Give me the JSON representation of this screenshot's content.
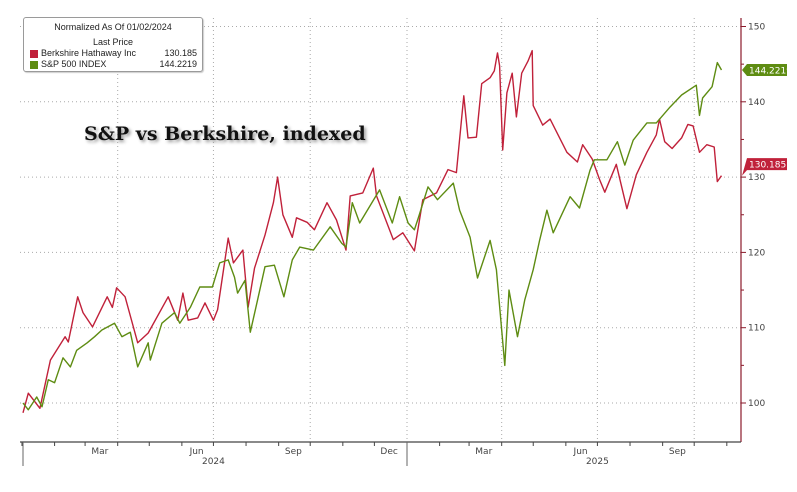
{
  "legend": {
    "header_line1": "Normalized As Of 01/02/2024",
    "header_line2": "Last Price",
    "items": [
      {
        "name": "Berkshire Hathaway Inc",
        "value": "130.185",
        "color": "#c0213a"
      },
      {
        "name": "S&P 500 INDEX",
        "value": "144.2219",
        "color": "#5e8c12"
      }
    ]
  },
  "annotation": "S&P vs Berkshire, indexed",
  "chart_data": {
    "type": "line",
    "title": "",
    "xlabel": "",
    "ylabel": "",
    "ylim": [
      95,
      151
    ],
    "y_ticks": [
      100,
      110,
      120,
      130,
      140,
      150
    ],
    "y_axis_side": "right",
    "x_range": [
      "2024-01-02",
      "2025-11-10"
    ],
    "x_tick_labels": [
      {
        "label": "Mar",
        "date": "2024-03-15"
      },
      {
        "label": "Jun",
        "date": "2024-06-15"
      },
      {
        "label": "Sep",
        "date": "2024-09-15"
      },
      {
        "label": "Dec",
        "date": "2024-12-15"
      },
      {
        "label": "Mar",
        "date": "2025-03-15"
      },
      {
        "label": "Jun",
        "date": "2025-06-15"
      },
      {
        "label": "Sep",
        "date": "2025-09-15"
      }
    ],
    "year_labels": [
      {
        "label": "2024",
        "date": "2024-07-01"
      },
      {
        "label": "2025",
        "date": "2025-07-01"
      }
    ],
    "grid": true,
    "legend_position": "top-left",
    "series": [
      {
        "name": "Berkshire Hathaway Inc",
        "color": "#c0213a",
        "last_value": "130.185",
        "points": [
          [
            "2024-01-02",
            98.7
          ],
          [
            "2024-01-07",
            101.3
          ],
          [
            "2024-01-18",
            99.3
          ],
          [
            "2024-01-28",
            105.7
          ],
          [
            "2024-02-11",
            108.8
          ],
          [
            "2024-02-14",
            108.1
          ],
          [
            "2024-02-23",
            114.1
          ],
          [
            "2024-02-28",
            112.0
          ],
          [
            "2024-03-08",
            110.1
          ],
          [
            "2024-03-22",
            114.1
          ],
          [
            "2024-03-27",
            112.7
          ],
          [
            "2024-03-31",
            115.3
          ],
          [
            "2024-04-08",
            114.1
          ],
          [
            "2024-04-20",
            108.0
          ],
          [
            "2024-04-30",
            109.3
          ],
          [
            "2024-05-19",
            114.1
          ],
          [
            "2024-05-28",
            111.0
          ],
          [
            "2024-06-02",
            114.6
          ],
          [
            "2024-06-07",
            111.0
          ],
          [
            "2024-06-16",
            111.3
          ],
          [
            "2024-06-23",
            113.3
          ],
          [
            "2024-07-01",
            111.0
          ],
          [
            "2024-07-05",
            112.4
          ],
          [
            "2024-07-15",
            121.9
          ],
          [
            "2024-07-20",
            118.6
          ],
          [
            "2024-07-29",
            120.3
          ],
          [
            "2024-08-03",
            112.7
          ],
          [
            "2024-08-09",
            117.9
          ],
          [
            "2024-08-19",
            122.3
          ],
          [
            "2024-08-27",
            126.6
          ],
          [
            "2024-08-31",
            130.0
          ],
          [
            "2024-09-05",
            125.0
          ],
          [
            "2024-09-14",
            122.0
          ],
          [
            "2024-09-18",
            124.6
          ],
          [
            "2024-09-28",
            124.0
          ],
          [
            "2024-10-05",
            123.0
          ],
          [
            "2024-10-17",
            126.6
          ],
          [
            "2024-10-26",
            124.3
          ],
          [
            "2024-11-04",
            120.3
          ],
          [
            "2024-11-08",
            127.5
          ],
          [
            "2024-11-20",
            127.9
          ],
          [
            "2024-11-30",
            131.2
          ],
          [
            "2024-12-03",
            127.5
          ],
          [
            "2024-12-19",
            121.7
          ],
          [
            "2024-12-28",
            122.6
          ],
          [
            "2025-01-08",
            120.2
          ],
          [
            "2025-01-16",
            127.0
          ],
          [
            "2025-01-29",
            127.9
          ],
          [
            "2025-02-09",
            131.0
          ],
          [
            "2025-02-17",
            130.6
          ],
          [
            "2025-02-24",
            140.8
          ],
          [
            "2025-02-28",
            135.2
          ],
          [
            "2025-03-08",
            135.3
          ],
          [
            "2025-03-13",
            142.4
          ],
          [
            "2025-03-21",
            143.2
          ],
          [
            "2025-03-25",
            144.1
          ],
          [
            "2025-03-28",
            146.5
          ],
          [
            "2025-03-30",
            144.8
          ],
          [
            "2025-04-02",
            133.6
          ],
          [
            "2025-04-06",
            141.2
          ],
          [
            "2025-04-11",
            143.8
          ],
          [
            "2025-04-15",
            138.0
          ],
          [
            "2025-04-20",
            143.8
          ],
          [
            "2025-04-26",
            145.4
          ],
          [
            "2025-04-30",
            146.8
          ],
          [
            "2025-05-01",
            139.5
          ],
          [
            "2025-05-10",
            136.9
          ],
          [
            "2025-05-17",
            137.7
          ],
          [
            "2025-06-02",
            133.3
          ],
          [
            "2025-06-12",
            132.0
          ],
          [
            "2025-06-17",
            134.3
          ],
          [
            "2025-06-26",
            132.4
          ],
          [
            "2025-07-03",
            129.7
          ],
          [
            "2025-07-08",
            128.0
          ],
          [
            "2025-07-19",
            131.7
          ],
          [
            "2025-07-29",
            125.8
          ],
          [
            "2025-08-07",
            130.3
          ],
          [
            "2025-08-17",
            133.3
          ],
          [
            "2025-08-26",
            135.6
          ],
          [
            "2025-08-29",
            137.7
          ],
          [
            "2025-09-03",
            134.7
          ],
          [
            "2025-09-10",
            133.8
          ],
          [
            "2025-09-19",
            135.2
          ],
          [
            "2025-09-25",
            137.0
          ],
          [
            "2025-09-30",
            136.8
          ],
          [
            "2025-10-06",
            133.3
          ],
          [
            "2025-10-13",
            134.3
          ],
          [
            "2025-10-20",
            134.0
          ],
          [
            "2025-10-23",
            129.4
          ],
          [
            "2025-10-27",
            130.185
          ]
        ]
      },
      {
        "name": "S&P 500 INDEX",
        "color": "#5e8c12",
        "last_value": "144.2219",
        "points": [
          [
            "2024-01-02",
            100.0
          ],
          [
            "2024-01-07",
            99.1
          ],
          [
            "2024-01-15",
            100.8
          ],
          [
            "2024-01-20",
            99.5
          ],
          [
            "2024-01-26",
            103.1
          ],
          [
            "2024-02-01",
            102.7
          ],
          [
            "2024-02-09",
            106.0
          ],
          [
            "2024-02-16",
            104.8
          ],
          [
            "2024-02-22",
            107.0
          ],
          [
            "2024-03-03",
            108.0
          ],
          [
            "2024-03-10",
            108.8
          ],
          [
            "2024-03-17",
            109.7
          ],
          [
            "2024-03-29",
            110.6
          ],
          [
            "2024-04-05",
            108.8
          ],
          [
            "2024-04-13",
            109.4
          ],
          [
            "2024-04-20",
            104.8
          ],
          [
            "2024-04-30",
            108.0
          ],
          [
            "2024-05-02",
            105.7
          ],
          [
            "2024-05-13",
            110.6
          ],
          [
            "2024-05-25",
            112.0
          ],
          [
            "2024-05-30",
            110.6
          ],
          [
            "2024-06-09",
            112.7
          ],
          [
            "2024-06-18",
            115.4
          ],
          [
            "2024-06-30",
            115.4
          ],
          [
            "2024-07-07",
            118.6
          ],
          [
            "2024-07-15",
            119.0
          ],
          [
            "2024-07-21",
            116.7
          ],
          [
            "2024-07-24",
            114.6
          ],
          [
            "2024-07-31",
            116.3
          ],
          [
            "2024-08-05",
            109.4
          ],
          [
            "2024-08-12",
            113.7
          ],
          [
            "2024-08-19",
            118.1
          ],
          [
            "2024-08-28",
            118.3
          ],
          [
            "2024-09-06",
            114.1
          ],
          [
            "2024-09-14",
            119.0
          ],
          [
            "2024-09-21",
            120.7
          ],
          [
            "2024-10-04",
            120.3
          ],
          [
            "2024-10-20",
            123.4
          ],
          [
            "2024-10-31",
            121.2
          ],
          [
            "2024-11-04",
            120.7
          ],
          [
            "2024-11-10",
            126.6
          ],
          [
            "2024-11-17",
            123.9
          ],
          [
            "2024-12-06",
            128.3
          ],
          [
            "2024-12-18",
            123.9
          ],
          [
            "2024-12-25",
            127.4
          ],
          [
            "2025-01-02",
            123.9
          ],
          [
            "2025-01-08",
            123.0
          ],
          [
            "2025-01-12",
            124.7
          ],
          [
            "2025-01-21",
            128.7
          ],
          [
            "2025-01-30",
            127.0
          ],
          [
            "2025-02-14",
            129.2
          ],
          [
            "2025-02-20",
            125.6
          ],
          [
            "2025-03-02",
            122.0
          ],
          [
            "2025-03-09",
            116.6
          ],
          [
            "2025-03-21",
            121.6
          ],
          [
            "2025-03-27",
            117.7
          ],
          [
            "2025-04-04",
            105.0
          ],
          [
            "2025-04-08",
            115.0
          ],
          [
            "2025-04-16",
            108.8
          ],
          [
            "2025-04-23",
            113.7
          ],
          [
            "2025-05-01",
            117.7
          ],
          [
            "2025-05-07",
            121.6
          ],
          [
            "2025-05-14",
            125.6
          ],
          [
            "2025-05-20",
            122.6
          ],
          [
            "2025-06-05",
            127.4
          ],
          [
            "2025-06-14",
            125.9
          ],
          [
            "2025-06-24",
            130.9
          ],
          [
            "2025-06-28",
            132.3
          ],
          [
            "2025-07-10",
            132.3
          ],
          [
            "2025-07-20",
            134.7
          ],
          [
            "2025-07-27",
            131.6
          ],
          [
            "2025-08-04",
            134.9
          ],
          [
            "2025-08-17",
            137.2
          ],
          [
            "2025-08-26",
            137.2
          ],
          [
            "2025-09-08",
            139.3
          ],
          [
            "2025-09-19",
            140.9
          ],
          [
            "2025-10-03",
            142.2
          ],
          [
            "2025-10-06",
            138.2
          ],
          [
            "2025-10-09",
            140.5
          ],
          [
            "2025-10-18",
            142.0
          ],
          [
            "2025-10-23",
            145.2
          ],
          [
            "2025-10-27",
            144.2219
          ]
        ]
      }
    ]
  }
}
